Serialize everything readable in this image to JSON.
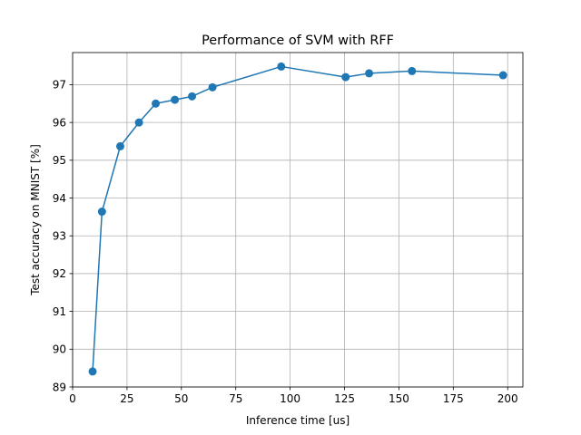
{
  "chart_data": {
    "type": "line",
    "title": "Performance of SVM with RFF",
    "xlabel": "Inference time [us]",
    "ylabel": "Test accuracy on MNIST [%]",
    "xlim": [
      0,
      207
    ],
    "ylim": [
      89,
      97.85
    ],
    "xticks": [
      0,
      25,
      50,
      75,
      100,
      125,
      150,
      175,
      200
    ],
    "yticks": [
      89,
      90,
      91,
      92,
      93,
      94,
      95,
      96,
      97
    ],
    "grid": true,
    "series": [
      {
        "color": "#1f77b4",
        "marker": "circle",
        "x": [
          9.2,
          13.5,
          21.9,
          30.5,
          38.2,
          47.0,
          54.9,
          64.3,
          95.9,
          125.5,
          136.3,
          156.0,
          197.9
        ],
        "y": [
          89.41,
          93.64,
          95.37,
          96.0,
          96.5,
          96.6,
          96.69,
          96.93,
          97.48,
          97.2,
          97.3,
          97.36,
          97.25
        ]
      }
    ]
  }
}
